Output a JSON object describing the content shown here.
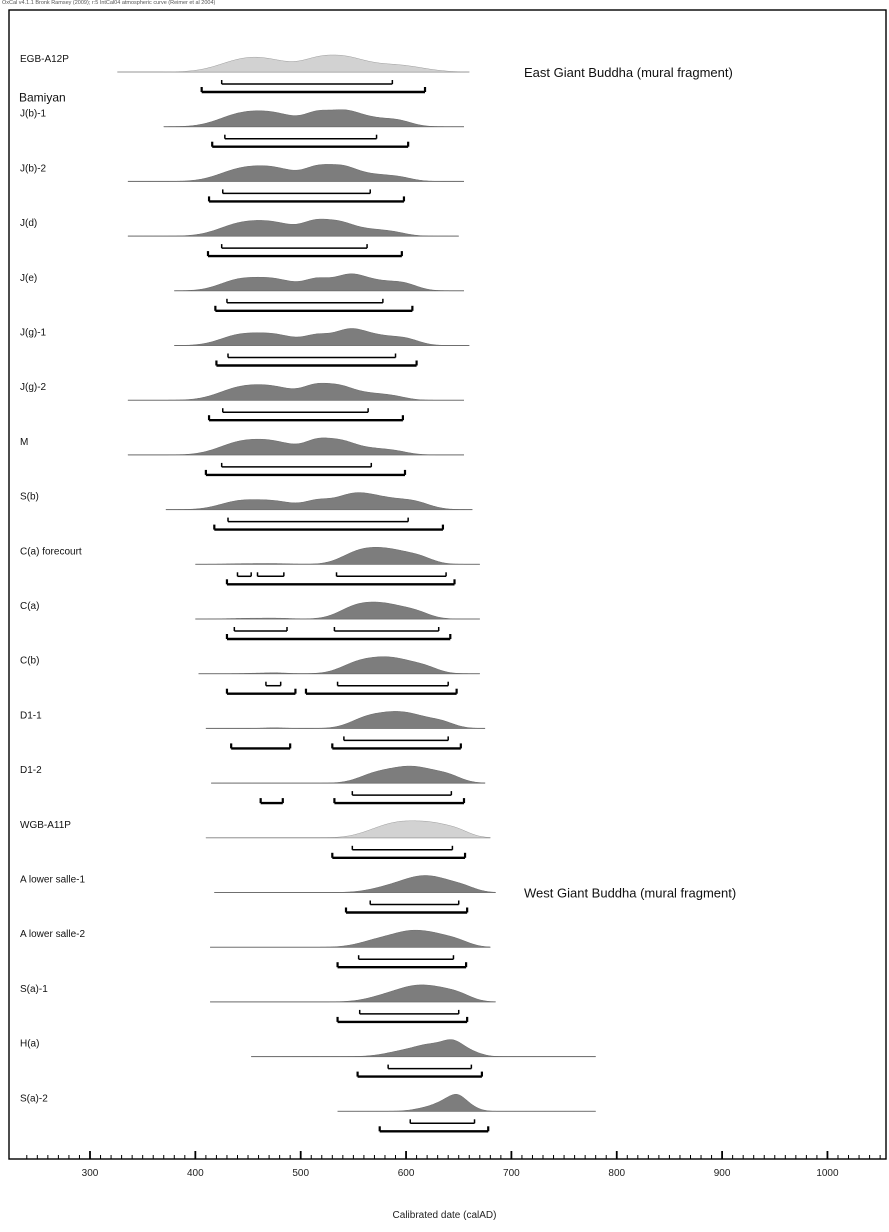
{
  "header": {
    "meta": "OxCal v4.1.1 Bronk Ramsey (2009); r:5 IntCal04 atmospheric curve (Reimer et al 2004)"
  },
  "chart_data": {
    "type": "area",
    "xlabel": "Calibrated date (calAD)",
    "xlim": [
      230,
      1055
    ],
    "xticks": [
      300,
      400,
      500,
      600,
      700,
      800,
      900,
      1000
    ],
    "colors": {
      "dark": "#7d7d7d",
      "light": "#d2d2d2",
      "line": "#000000",
      "baseline": "#8a8a8a"
    },
    "groups": [
      {
        "label": "Bamiyan",
        "before": 1
      }
    ],
    "annotations": [
      {
        "text": "East Giant Buddha (mural fragment)",
        "row": 0
      },
      {
        "text": "West Giant Buddha (mural fragment)",
        "row": 15
      }
    ],
    "samples": [
      {
        "name": "EGB-A12P",
        "shade": "light",
        "range": [
          326,
          660
        ],
        "peaks": [
          [
            440,
            0.55,
            22
          ],
          [
            470,
            0.75,
            25
          ],
          [
            515,
            0.6,
            15
          ],
          [
            540,
            0.85,
            18
          ],
          [
            575,
            0.45,
            25
          ],
          [
            605,
            0.2,
            20
          ]
        ],
        "r68": [
          [
            425,
            587
          ]
        ],
        "r95": [
          [
            406,
            618
          ]
        ]
      },
      {
        "name": "J(b)-1",
        "shade": "dark",
        "range": [
          370,
          655
        ],
        "peaks": [
          [
            440,
            0.65,
            20
          ],
          [
            475,
            0.8,
            22
          ],
          [
            515,
            0.65,
            12
          ],
          [
            540,
            0.85,
            15
          ],
          [
            570,
            0.5,
            20
          ],
          [
            595,
            0.2,
            12
          ]
        ],
        "r68": [
          [
            428,
            572
          ]
        ],
        "r95": [
          [
            416,
            602
          ]
        ]
      },
      {
        "name": "J(b)-2",
        "shade": "dark",
        "range": [
          336,
          655
        ],
        "peaks": [
          [
            440,
            0.65,
            20
          ],
          [
            475,
            0.85,
            22
          ],
          [
            515,
            0.7,
            12
          ],
          [
            538,
            0.85,
            14
          ],
          [
            568,
            0.45,
            20
          ],
          [
            595,
            0.15,
            12
          ]
        ],
        "r68": [
          [
            426,
            566
          ]
        ],
        "r95": [
          [
            413,
            598
          ]
        ]
      },
      {
        "name": "J(d)",
        "shade": "dark",
        "range": [
          336,
          650
        ],
        "peaks": [
          [
            440,
            0.7,
            20
          ],
          [
            475,
            0.88,
            22
          ],
          [
            513,
            0.72,
            12
          ],
          [
            535,
            0.85,
            14
          ],
          [
            565,
            0.45,
            18
          ],
          [
            590,
            0.15,
            12
          ]
        ],
        "r68": [
          [
            425,
            563
          ]
        ],
        "r95": [
          [
            412,
            596
          ]
        ]
      },
      {
        "name": "J(e)",
        "shade": "dark",
        "range": [
          380,
          655
        ],
        "peaks": [
          [
            440,
            0.6,
            18
          ],
          [
            475,
            0.7,
            20
          ],
          [
            515,
            0.6,
            12
          ],
          [
            545,
            0.85,
            15
          ],
          [
            575,
            0.55,
            20
          ],
          [
            600,
            0.25,
            12
          ]
        ],
        "r68": [
          [
            430,
            578
          ]
        ],
        "r95": [
          [
            419,
            606
          ]
        ]
      },
      {
        "name": "J(g)-1",
        "shade": "dark",
        "range": [
          380,
          660
        ],
        "peaks": [
          [
            440,
            0.6,
            18
          ],
          [
            475,
            0.7,
            20
          ],
          [
            515,
            0.55,
            12
          ],
          [
            545,
            0.9,
            15
          ],
          [
            575,
            0.6,
            20
          ],
          [
            602,
            0.25,
            12
          ]
        ],
        "r68": [
          [
            431,
            590
          ]
        ],
        "r95": [
          [
            420,
            610
          ]
        ]
      },
      {
        "name": "J(g)-2",
        "shade": "dark",
        "range": [
          336,
          655
        ],
        "peaks": [
          [
            440,
            0.7,
            20
          ],
          [
            475,
            0.85,
            22
          ],
          [
            513,
            0.7,
            12
          ],
          [
            535,
            0.85,
            14
          ],
          [
            565,
            0.45,
            18
          ],
          [
            590,
            0.15,
            12
          ]
        ],
        "r68": [
          [
            426,
            564
          ]
        ],
        "r95": [
          [
            413,
            597
          ]
        ]
      },
      {
        "name": "M",
        "shade": "dark",
        "range": [
          336,
          655
        ],
        "peaks": [
          [
            440,
            0.75,
            20
          ],
          [
            475,
            0.9,
            22
          ],
          [
            515,
            0.78,
            12
          ],
          [
            537,
            0.88,
            14
          ],
          [
            567,
            0.45,
            18
          ],
          [
            592,
            0.15,
            12
          ]
        ],
        "r68": [
          [
            425,
            567
          ]
        ],
        "r95": [
          [
            410,
            599
          ]
        ]
      },
      {
        "name": "S(b)",
        "shade": "dark",
        "range": [
          372,
          663
        ],
        "peaks": [
          [
            440,
            0.55,
            18
          ],
          [
            475,
            0.6,
            20
          ],
          [
            515,
            0.5,
            12
          ],
          [
            548,
            0.95,
            18
          ],
          [
            580,
            0.75,
            22
          ],
          [
            610,
            0.35,
            14
          ]
        ],
        "r68": [
          [
            431,
            602
          ]
        ],
        "r95": [
          [
            418,
            635
          ]
        ]
      },
      {
        "name": "C(a) forecourt",
        "shade": "dark",
        "range": [
          400,
          670
        ],
        "peaks": [
          [
            445,
            0.05,
            15
          ],
          [
            475,
            0.06,
            15
          ],
          [
            550,
            0.55,
            15
          ],
          [
            570,
            0.95,
            18
          ],
          [
            595,
            0.75,
            18
          ],
          [
            615,
            0.3,
            12
          ]
        ],
        "r68": [
          [
            440,
            453
          ],
          [
            459,
            484
          ],
          [
            534,
            638
          ]
        ],
        "r95": [
          [
            430,
            646
          ]
        ]
      },
      {
        "name": "C(a)",
        "shade": "dark",
        "range": [
          400,
          670
        ],
        "peaks": [
          [
            445,
            0.05,
            15
          ],
          [
            475,
            0.07,
            15
          ],
          [
            548,
            0.6,
            15
          ],
          [
            568,
            0.95,
            18
          ],
          [
            592,
            0.75,
            18
          ],
          [
            612,
            0.3,
            12
          ]
        ],
        "r68": [
          [
            437,
            487
          ],
          [
            532,
            631
          ]
        ],
        "r95": [
          [
            430,
            642
          ]
        ]
      },
      {
        "name": "C(b)",
        "shade": "dark",
        "range": [
          403,
          670
        ],
        "peaks": [
          [
            460,
            0.04,
            12
          ],
          [
            478,
            0.06,
            10
          ],
          [
            550,
            0.55,
            15
          ],
          [
            573,
            0.95,
            18
          ],
          [
            598,
            0.8,
            18
          ],
          [
            620,
            0.3,
            12
          ]
        ],
        "r68": [
          [
            467,
            481
          ],
          [
            535,
            640
          ]
        ],
        "r95": [
          [
            430,
            495
          ],
          [
            505,
            648
          ]
        ]
      },
      {
        "name": "D1-1",
        "shade": "dark",
        "range": [
          410,
          675
        ],
        "peaks": [
          [
            475,
            0.05,
            10
          ],
          [
            560,
            0.6,
            15
          ],
          [
            585,
            0.95,
            18
          ],
          [
            610,
            0.75,
            18
          ],
          [
            635,
            0.35,
            12
          ]
        ],
        "r68": [
          [
            541,
            640
          ]
        ],
        "r95": [
          [
            434,
            490
          ],
          [
            530,
            652
          ]
        ]
      },
      {
        "name": "D1-2",
        "shade": "dark",
        "range": [
          415,
          675
        ],
        "peaks": [
          [
            568,
            0.55,
            15
          ],
          [
            595,
            0.95,
            18
          ],
          [
            620,
            0.8,
            18
          ],
          [
            642,
            0.35,
            12
          ]
        ],
        "r68": [
          [
            549,
            643
          ]
        ],
        "r95": [
          [
            462,
            483
          ],
          [
            532,
            655
          ]
        ]
      },
      {
        "name": "WGB-A11P",
        "shade": "light",
        "range": [
          410,
          680
        ],
        "peaks": [
          [
            575,
            0.55,
            18
          ],
          [
            600,
            0.95,
            18
          ],
          [
            628,
            0.85,
            16
          ],
          [
            650,
            0.4,
            12
          ]
        ],
        "r68": [
          [
            549,
            644
          ]
        ],
        "r95": [
          [
            530,
            656
          ]
        ]
      },
      {
        "name": "A lower salle-1",
        "shade": "dark",
        "range": [
          418,
          685
        ],
        "peaks": [
          [
            585,
            0.5,
            18
          ],
          [
            610,
            0.95,
            16
          ],
          [
            632,
            0.95,
            16
          ],
          [
            655,
            0.4,
            12
          ]
        ],
        "r68": [
          [
            566,
            650
          ]
        ],
        "r95": [
          [
            543,
            658
          ]
        ]
      },
      {
        "name": "A lower salle-2",
        "shade": "dark",
        "range": [
          414,
          680
        ],
        "peaks": [
          [
            575,
            0.6,
            18
          ],
          [
            603,
            0.95,
            16
          ],
          [
            628,
            0.85,
            16
          ],
          [
            650,
            0.35,
            12
          ]
        ],
        "r68": [
          [
            555,
            645
          ]
        ],
        "r95": [
          [
            535,
            657
          ]
        ]
      },
      {
        "name": "S(a)-1",
        "shade": "dark",
        "range": [
          414,
          685
        ],
        "peaks": [
          [
            583,
            0.55,
            18
          ],
          [
            608,
            0.95,
            16
          ],
          [
            632,
            0.9,
            16
          ],
          [
            652,
            0.4,
            12
          ]
        ],
        "r68": [
          [
            556,
            650
          ]
        ],
        "r95": [
          [
            535,
            658
          ]
        ]
      },
      {
        "name": "H(a)",
        "shade": "dark",
        "range": [
          453,
          780
        ],
        "peaks": [
          [
            600,
            0.45,
            18
          ],
          [
            625,
            0.75,
            14
          ],
          [
            645,
            0.95,
            10
          ],
          [
            662,
            0.3,
            10
          ]
        ],
        "r68": [
          [
            583,
            662
          ]
        ],
        "r95": [
          [
            554,
            672
          ]
        ]
      },
      {
        "name": "S(a)-2",
        "shade": "dark",
        "range": [
          535,
          780
        ],
        "peaks": [
          [
            625,
            0.4,
            14
          ],
          [
            640,
            0.7,
            10
          ],
          [
            650,
            0.95,
            8
          ],
          [
            662,
            0.3,
            8
          ]
        ],
        "r68": [
          [
            604,
            665
          ]
        ],
        "r95": [
          [
            575,
            678
          ]
        ]
      }
    ]
  }
}
